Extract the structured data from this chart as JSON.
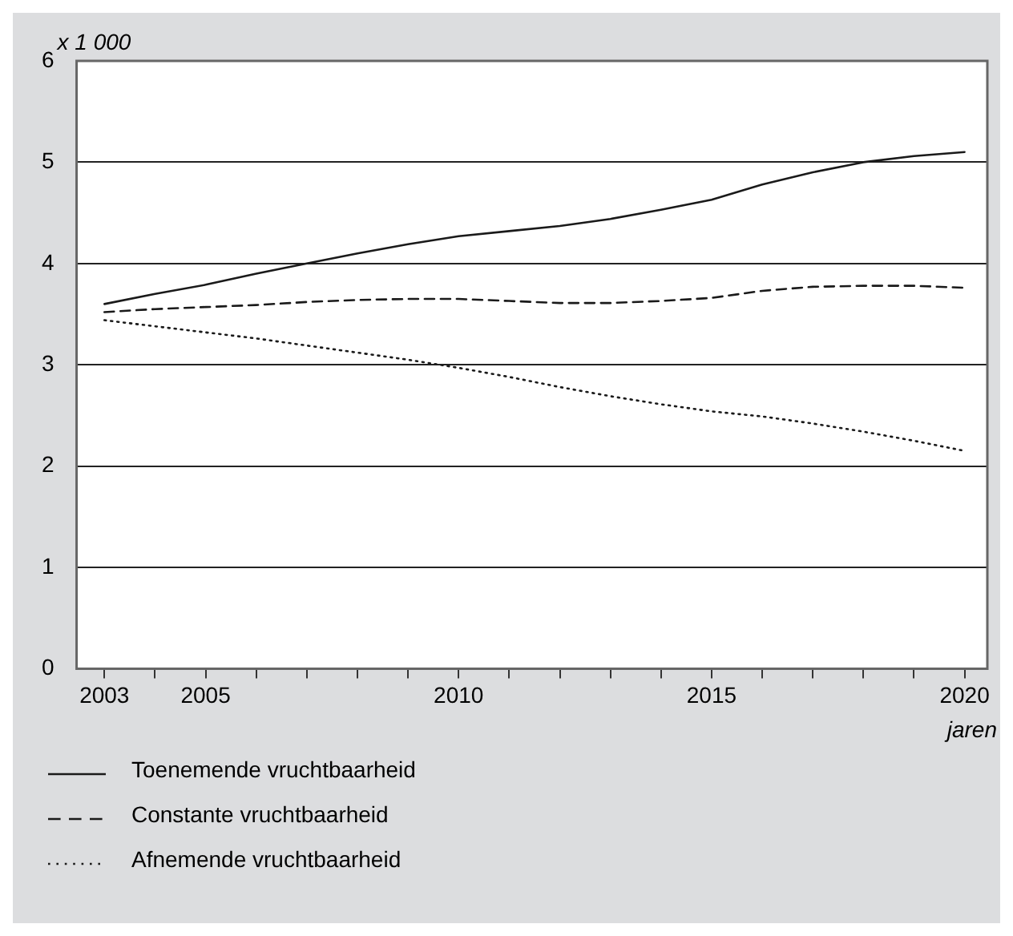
{
  "chart_data": {
    "type": "line",
    "ylabel": "x 1 000",
    "xlabel": "jaren",
    "x": [
      2003,
      2004,
      2005,
      2006,
      2007,
      2008,
      2009,
      2010,
      2011,
      2012,
      2013,
      2014,
      2015,
      2016,
      2017,
      2018,
      2019,
      2020
    ],
    "series": [
      {
        "name": "Toenemende vruchtbaarheid",
        "color": "#1a1a1a",
        "line_style": "solid",
        "values": [
          3.6,
          3.7,
          3.79,
          3.9,
          4.0,
          4.1,
          4.19,
          4.27,
          4.32,
          4.37,
          4.44,
          4.53,
          4.63,
          4.78,
          4.9,
          5.0,
          5.06,
          5.1
        ]
      },
      {
        "name": "Constante vruchtbaarheid",
        "color": "#1a1a1a",
        "line_style": "dashed",
        "values": [
          3.52,
          3.55,
          3.57,
          3.59,
          3.62,
          3.64,
          3.65,
          3.65,
          3.63,
          3.61,
          3.61,
          3.63,
          3.66,
          3.73,
          3.77,
          3.78,
          3.78,
          3.76
        ]
      },
      {
        "name": "Afnemende vruchtbaarheid",
        "color": "#1a1a1a",
        "line_style": "dotted",
        "values": [
          3.44,
          3.38,
          3.32,
          3.26,
          3.19,
          3.12,
          3.05,
          2.97,
          2.88,
          2.78,
          2.69,
          2.61,
          2.54,
          2.49,
          2.42,
          2.34,
          2.25,
          2.15
        ]
      }
    ],
    "xlim": [
      2002.45,
      2020.45
    ],
    "xticks": [
      2003,
      {
        "value": 2004,
        "label": null
      },
      2005,
      {
        "value": 2006,
        "label": null
      },
      {
        "value": 2007,
        "label": null
      },
      {
        "value": 2008,
        "label": null
      },
      {
        "value": 2009,
        "label": null
      },
      2010,
      {
        "value": 2011,
        "label": null
      },
      {
        "value": 2012,
        "label": null
      },
      {
        "value": 2013,
        "label": null
      },
      {
        "value": 2014,
        "label": null
      },
      2015,
      {
        "value": 2016,
        "label": null
      },
      {
        "value": 2017,
        "label": null
      },
      {
        "value": 2018,
        "label": null
      },
      {
        "value": 2019,
        "label": null
      },
      2020
    ],
    "ylim": [
      0,
      6
    ],
    "yticks": [
      0,
      1,
      2,
      3,
      4,
      5,
      6
    ],
    "grid": "y",
    "legend": "bottom left",
    "marker": "none"
  }
}
